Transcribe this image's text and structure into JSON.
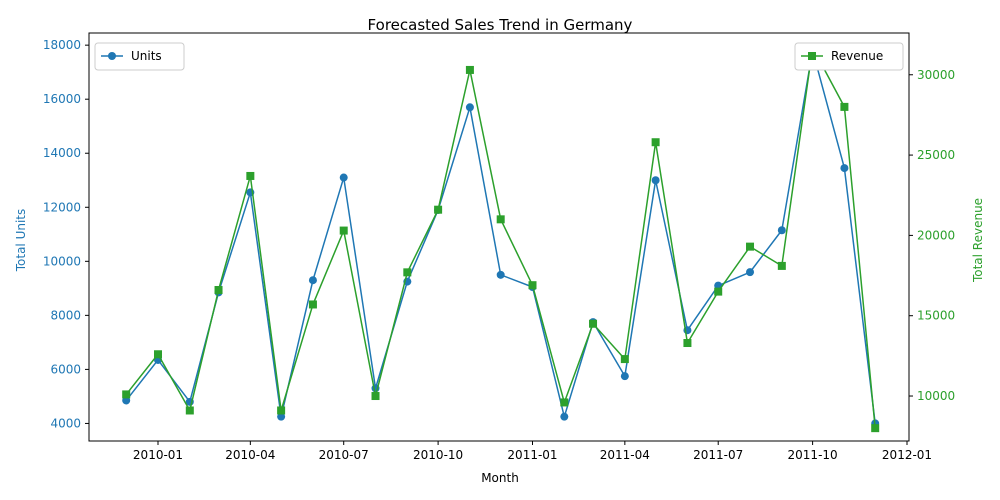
{
  "chart_data": {
    "type": "line",
    "title": "Forecasted Sales Trend in Germany",
    "xlabel": "Month",
    "ylabel_left": "Total Units",
    "ylabel_right": "Total Revenue",
    "x_ticks": [
      "2010-01",
      "2010-04",
      "2010-07",
      "2010-10",
      "2011-01",
      "2011-04",
      "2011-07",
      "2011-10",
      "2012-01"
    ],
    "y_left_ticks": [
      "4000",
      "6000",
      "8000",
      "10000",
      "12000",
      "14000",
      "16000",
      "18000"
    ],
    "y_right_ticks": [
      "10000",
      "15000",
      "20000",
      "25000",
      "30000"
    ],
    "ylim_left": [
      3350,
      18450
    ],
    "ylim_right": [
      7200,
      32600
    ],
    "legend_left": "upper left",
    "legend_right": "upper right",
    "grid": false,
    "series": [
      {
        "name": "Units",
        "axis": "left",
        "color": "#1f77b4",
        "marker": "circle",
        "x": [
          "2009-12-01",
          "2010-01-01",
          "2010-02-01",
          "2010-03-01",
          "2010-04-01",
          "2010-05-01",
          "2010-06-01",
          "2010-07-01",
          "2010-08-01",
          "2010-09-01",
          "2010-10-01",
          "2010-11-01",
          "2010-12-01",
          "2011-01-01",
          "2011-02-01",
          "2011-03-01",
          "2011-04-01",
          "2011-05-01",
          "2011-06-01",
          "2011-07-01",
          "2011-08-01",
          "2011-09-01",
          "2011-10-01",
          "2011-11-01",
          "2011-12-01"
        ],
        "values": [
          4850,
          6350,
          4800,
          8850,
          12550,
          4250,
          9300,
          13100,
          5300,
          9250,
          11900,
          15700,
          9500,
          9050,
          4250,
          7750,
          5750,
          13000,
          7450,
          9100,
          9600,
          11150,
          17800,
          13450,
          4000
        ]
      },
      {
        "name": "Revenue",
        "axis": "right",
        "color": "#2ca02c",
        "marker": "square",
        "x": [
          "2009-12-01",
          "2010-01-01",
          "2010-02-01",
          "2010-03-01",
          "2010-04-01",
          "2010-05-01",
          "2010-06-01",
          "2010-07-01",
          "2010-08-01",
          "2010-09-01",
          "2010-10-01",
          "2010-11-01",
          "2010-12-01",
          "2011-01-01",
          "2011-02-01",
          "2011-03-01",
          "2011-04-01",
          "2011-05-01",
          "2011-06-01",
          "2011-07-01",
          "2011-08-01",
          "2011-09-01",
          "2011-10-01",
          "2011-11-01",
          "2011-12-01"
        ],
        "values": [
          10100,
          12600,
          9100,
          16600,
          23700,
          9100,
          15700,
          20300,
          10000,
          17700,
          21600,
          30300,
          21000,
          16900,
          9600,
          14500,
          12300,
          25800,
          13300,
          16500,
          19300,
          18100,
          31700,
          28000,
          8000
        ]
      }
    ]
  }
}
